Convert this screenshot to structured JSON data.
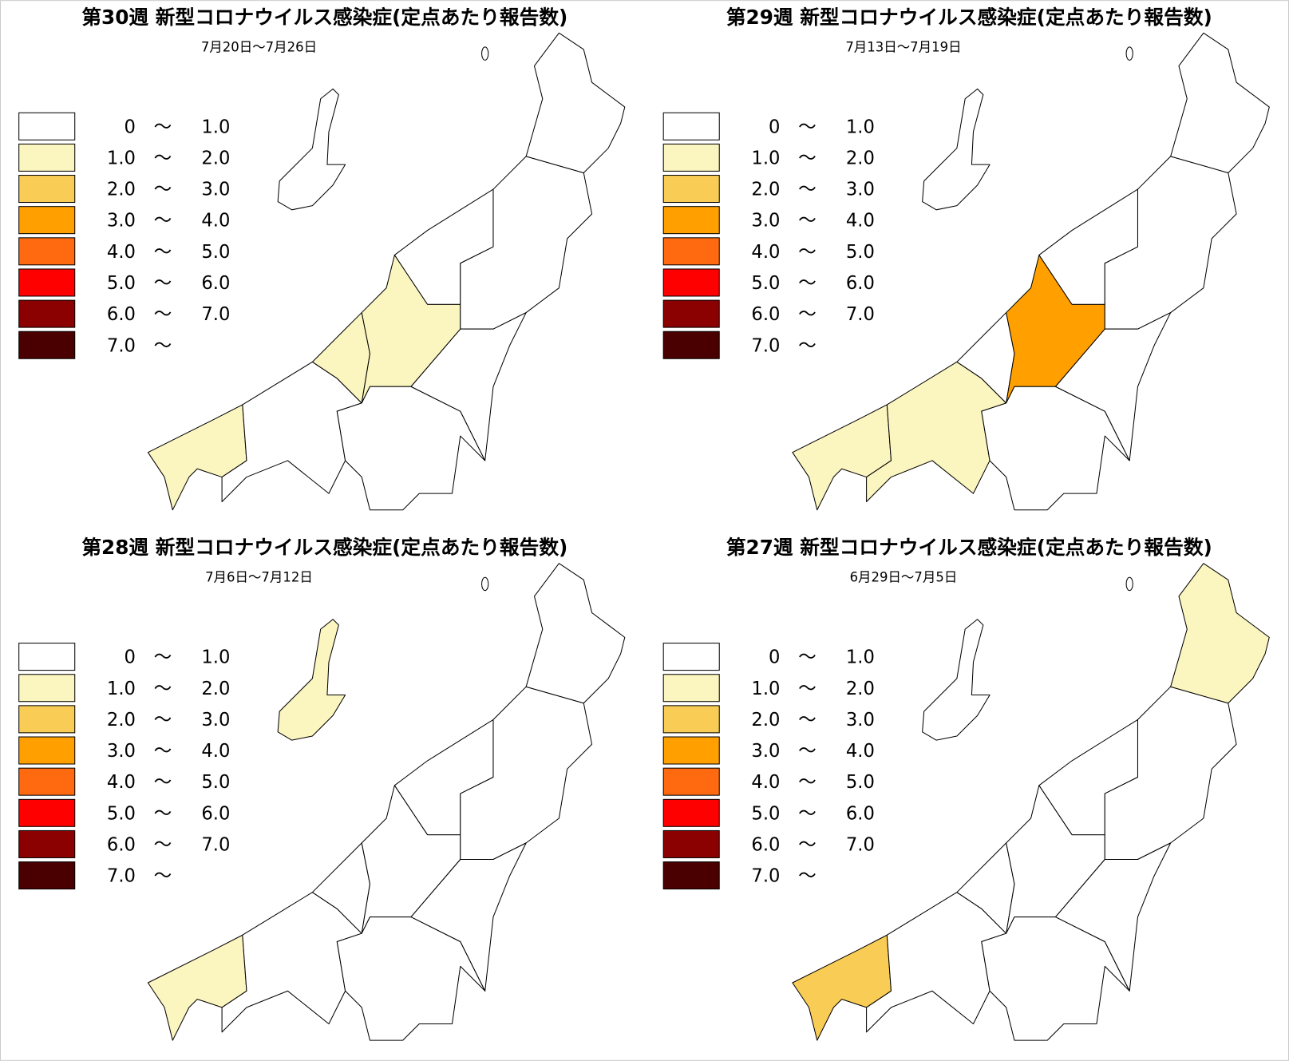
{
  "legend": [
    {
      "from": "0",
      "sep": "～",
      "to": "1.0",
      "color": "#ffffff"
    },
    {
      "from": "1.0",
      "sep": "～",
      "to": "2.0",
      "color": "#fbf5c0"
    },
    {
      "from": "2.0",
      "sep": "～",
      "to": "3.0",
      "color": "#f9cd55"
    },
    {
      "from": "3.0",
      "sep": "～",
      "to": "4.0",
      "color": "#ffa000"
    },
    {
      "from": "4.0",
      "sep": "～",
      "to": "5.0",
      "color": "#ff6a10"
    },
    {
      "from": "5.0",
      "sep": "～",
      "to": "6.0",
      "color": "#ff0000"
    },
    {
      "from": "6.0",
      "sep": "～",
      "to": "7.0",
      "color": "#8b0000"
    },
    {
      "from": "7.0",
      "sep": "～",
      "color": "#4a0000"
    }
  ],
  "panels": [
    {
      "title": "第30週 新型コロナウイルス感染症(定点あたり報告数)",
      "period": "7月20日～7月26日",
      "region_colors": [
        "#fbf5c0",
        "#ffffff",
        "#fbf5c0",
        "#fbf5c0",
        "#ffffff",
        "#ffffff",
        "#ffffff",
        "#ffffff",
        "#ffffff",
        "#ffffff"
      ]
    },
    {
      "title": "第29週 新型コロナウイルス感染症(定点あたり報告数)",
      "period": "7月13日～7月19日",
      "region_colors": [
        "#fbf5c0",
        "#fbf5c0",
        "#ffffff",
        "#ffa000",
        "#ffffff",
        "#ffffff",
        "#ffffff",
        "#ffffff",
        "#ffffff",
        "#ffffff"
      ]
    },
    {
      "title": "第28週 新型コロナウイルス感染症(定点あたり報告数)",
      "period": "7月6日～7月12日",
      "region_colors": [
        "#fbf5c0",
        "#ffffff",
        "#ffffff",
        "#ffffff",
        "#ffffff",
        "#ffffff",
        "#ffffff",
        "#ffffff",
        "#ffffff",
        "#fbf5c0"
      ]
    },
    {
      "title": "第27週 新型コロナウイルス感染症(定点あたり報告数)",
      "period": "6月29日～7月5日",
      "region_colors": [
        "#f9cd55",
        "#ffffff",
        "#ffffff",
        "#ffffff",
        "#ffffff",
        "#ffffff",
        "#ffffff",
        "#ffffff",
        "#fbf5c0",
        "#ffffff"
      ]
    }
  ]
}
